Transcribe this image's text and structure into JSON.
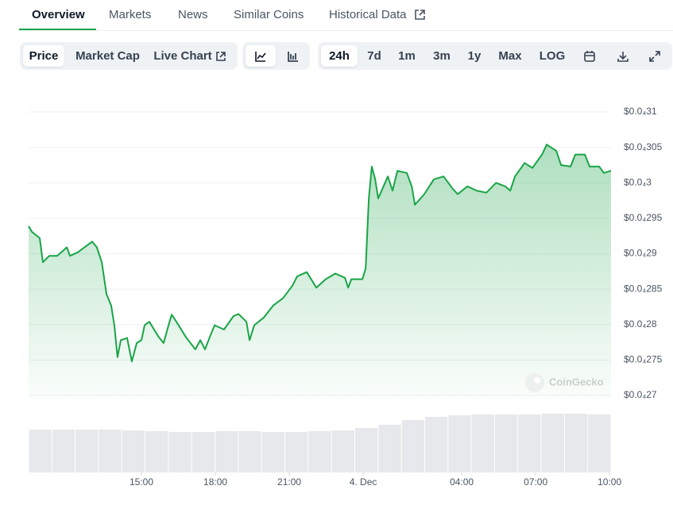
{
  "tabs": [
    "Overview",
    "Markets",
    "News",
    "Similar Coins",
    "Historical Data"
  ],
  "toolbar": {
    "views": [
      "Price",
      "Market Cap",
      "Live Chart"
    ],
    "ranges": [
      "24h",
      "7d",
      "1m",
      "3m",
      "1y",
      "Max",
      "LOG"
    ]
  },
  "watermark": "CoinGecko",
  "chart_data": {
    "type": "line",
    "color": "#1aa448",
    "grid": true,
    "x": [
      10.42,
      10.55,
      10.87,
      11.0,
      11.26,
      11.58,
      11.97,
      12.1,
      12.42,
      13.0,
      13.19,
      13.39,
      13.58,
      13.77,
      13.9,
      14.03,
      14.16,
      14.42,
      14.61,
      14.81,
      15.0,
      15.13,
      15.32,
      15.71,
      15.9,
      16.1,
      16.23,
      16.42,
      16.81,
      17.19,
      17.39,
      17.58,
      17.77,
      17.97,
      18.35,
      18.74,
      18.94,
      19.26,
      19.39,
      19.58,
      19.97,
      20.35,
      20.74,
      21.13,
      21.32,
      21.71,
      22.1,
      22.48,
      22.87,
      23.26,
      23.39,
      23.52,
      23.97,
      24.1,
      24.23,
      24.35,
      24.48,
      24.61,
      25.0,
      25.19,
      25.39,
      25.77,
      25.97,
      26.1,
      26.48,
      26.87,
      27.26,
      27.65,
      27.84,
      28.23,
      28.61,
      29.0,
      29.39,
      29.77,
      29.97,
      30.16,
      30.55,
      30.87,
      31.26,
      31.45,
      31.84,
      32.03,
      32.42,
      32.61,
      33.0,
      33.19,
      33.58,
      33.77,
      34.06
    ],
    "values": [
      2.939e-05,
      2.931e-05,
      2.922e-05,
      2.888e-05,
      2.897e-05,
      2.897e-05,
      2.909e-05,
      2.897e-05,
      2.902e-05,
      2.917e-05,
      2.909e-05,
      2.888e-05,
      2.843e-05,
      2.827e-05,
      2.799e-05,
      2.754e-05,
      2.778e-05,
      2.781e-05,
      2.748e-05,
      2.774e-05,
      2.778e-05,
      2.799e-05,
      2.804e-05,
      2.782e-05,
      2.774e-05,
      2.799e-05,
      2.814e-05,
      2.804e-05,
      2.782e-05,
      2.765e-05,
      2.778e-05,
      2.765e-05,
      2.782e-05,
      2.799e-05,
      2.793e-05,
      2.812e-05,
      2.815e-05,
      2.804e-05,
      2.778e-05,
      2.799e-05,
      2.81e-05,
      2.827e-05,
      2.837e-05,
      2.855e-05,
      2.868e-05,
      2.874e-05,
      2.852e-05,
      2.864e-05,
      2.872e-05,
      2.866e-05,
      2.852e-05,
      2.864e-05,
      2.864e-05,
      2.879e-05,
      2.978e-05,
      3.023e-05,
      3.006e-05,
      2.978e-05,
      3.009e-05,
      2.989e-05,
      3.017e-05,
      3.014e-05,
      2.995e-05,
      2.969e-05,
      2.984e-05,
      3.005e-05,
      3.009e-05,
      2.991e-05,
      2.984e-05,
      2.995e-05,
      2.989e-05,
      2.986e-05,
      3e-05,
      2.995e-05,
      2.989e-05,
      3.009e-05,
      3.028e-05,
      3.021e-05,
      3.04e-05,
      3.054e-05,
      3.045e-05,
      3.025e-05,
      3.023e-05,
      3.04e-05,
      3.04e-05,
      3.023e-05,
      3.023e-05,
      3.014e-05,
      3.017e-05
    ],
    "xlim": [
      10.42,
      34.06
    ],
    "xticks": [
      {
        "value": 15,
        "label": "15:00"
      },
      {
        "value": 18,
        "label": "18:00"
      },
      {
        "value": 21,
        "label": "21:00"
      },
      {
        "value": 24,
        "label": "4. Dec"
      },
      {
        "value": 28,
        "label": "04:00"
      },
      {
        "value": 31,
        "label": "07:00"
      },
      {
        "value": 34,
        "label": "10:00"
      }
    ],
    "ylim": [
      2.7e-05,
      3.1e-05
    ],
    "yticks": [
      {
        "value": 3.1e-05,
        "label": "$0.0₄31"
      },
      {
        "value": 3.05e-05,
        "label": "$0.0₄305"
      },
      {
        "value": 3e-05,
        "label": "$0.0₄3"
      },
      {
        "value": 2.95e-05,
        "label": "$0.0₄295"
      },
      {
        "value": 2.9e-05,
        "label": "$0.0₄29"
      },
      {
        "value": 2.85e-05,
        "label": "$0.0₄285"
      },
      {
        "value": 2.8e-05,
        "label": "$0.0₄28"
      },
      {
        "value": 2.75e-05,
        "label": "$0.0₄275"
      },
      {
        "value": 2.7e-05,
        "label": "$0.0₄27"
      }
    ],
    "volume": {
      "color": "#e6e8eb",
      "values": [
        54,
        54,
        54,
        54,
        53,
        52,
        51,
        51,
        52,
        52,
        51,
        51,
        52,
        53,
        56,
        60,
        66,
        70,
        72,
        73,
        73,
        73,
        74,
        74,
        73
      ]
    },
    "y2lim": [
      0,
      100
    ]
  }
}
